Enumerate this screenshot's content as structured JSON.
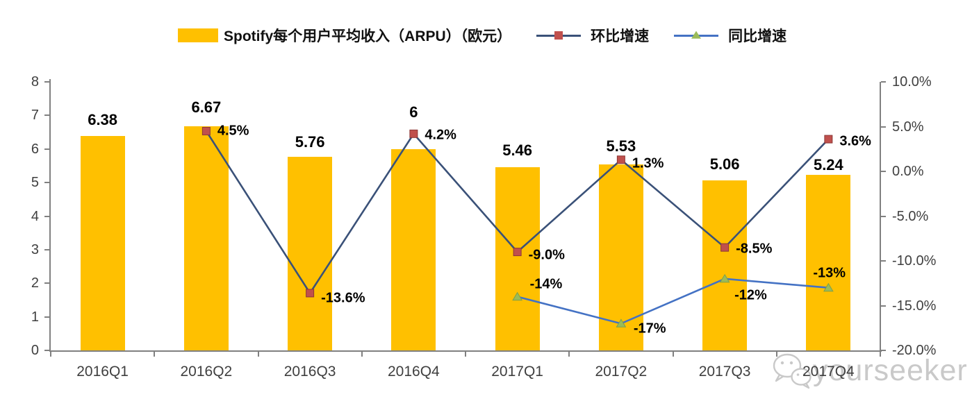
{
  "colors": {
    "bar": "#FFC000",
    "qoq_line": "#3A5178",
    "qoq_marker": "#C0504D",
    "yoy_line": "#4472C4",
    "yoy_marker": "#9BBB59",
    "axis": "#808080",
    "axis_text": "#3F3F3F",
    "label_text": "#000000",
    "watermark": "#C9C9C9"
  },
  "legend": {
    "items": [
      {
        "id": "arpu",
        "label": "Spotify每个用户平均收入（ARPU）（欧元）"
      },
      {
        "id": "qoq",
        "label": "环比增速"
      },
      {
        "id": "yoy",
        "label": "同比增速"
      }
    ]
  },
  "chart_data": {
    "type": "bar+line",
    "categories": [
      "2016Q1",
      "2016Q2",
      "2016Q3",
      "2016Q4",
      "2017Q1",
      "2017Q2",
      "2017Q3",
      "2017Q4"
    ],
    "series": [
      {
        "id": "arpu",
        "name": "Spotify每个用户平均收入（ARPU）（欧元）",
        "type": "bar",
        "axis": "left",
        "color": "#FFC000",
        "values": [
          6.38,
          6.67,
          5.76,
          6,
          5.46,
          5.53,
          5.06,
          5.24
        ],
        "point_labels": [
          "6.38",
          "6.67",
          "5.76",
          "6",
          "5.46",
          "5.53",
          "5.06",
          "5.24"
        ],
        "label_dy": [
          -23,
          -27,
          -21,
          -53,
          -24,
          -26,
          -23,
          -14
        ]
      },
      {
        "id": "qoq",
        "name": "环比增速",
        "type": "line",
        "axis": "right",
        "marker": "square",
        "line_color": "#3A5178",
        "marker_color": "#C0504D",
        "values": [
          null,
          4.5,
          -13.6,
          4.2,
          -9.0,
          1.3,
          -8.5,
          3.6
        ],
        "point_labels": [
          null,
          "4.5%",
          "-13.6%",
          "4.2%",
          "-9.0%",
          "1.3%",
          "-8.5%",
          "3.6%"
        ],
        "label_offsets": [
          null,
          [
            16,
            0
          ],
          [
            16,
            8
          ],
          [
            16,
            2
          ],
          [
            16,
            5
          ],
          [
            16,
            6
          ],
          [
            16,
            2
          ],
          [
            16,
            3
          ]
        ]
      },
      {
        "id": "yoy",
        "name": "同比增速",
        "type": "line",
        "axis": "right",
        "marker": "triangle",
        "line_color": "#4472C4",
        "marker_color": "#9BBB59",
        "values": [
          null,
          null,
          null,
          null,
          -14,
          -17,
          -12,
          -13
        ],
        "point_labels": [
          null,
          null,
          null,
          null,
          "-14%",
          "-17%",
          "-12%",
          "-13%"
        ],
        "label_offsets": [
          null,
          null,
          null,
          null,
          [
            18,
            -18
          ],
          [
            18,
            8
          ],
          [
            14,
            24
          ],
          [
            -22,
            -21
          ]
        ]
      }
    ],
    "left_axis": {
      "min": 0,
      "max": 8,
      "tick_labels": [
        "8",
        "7",
        "6",
        "5",
        "4",
        "3",
        "2",
        "1",
        "0"
      ]
    },
    "right_axis": {
      "min": -20,
      "max": 10,
      "tick_labels": [
        "10.0%",
        "5.0%",
        "0.0%",
        "-5.0%",
        "-10.0%",
        "-15.0%",
        "-20.0%"
      ]
    },
    "grid": false,
    "legend_position": "top"
  },
  "watermark": {
    "text": "yourseeker"
  }
}
